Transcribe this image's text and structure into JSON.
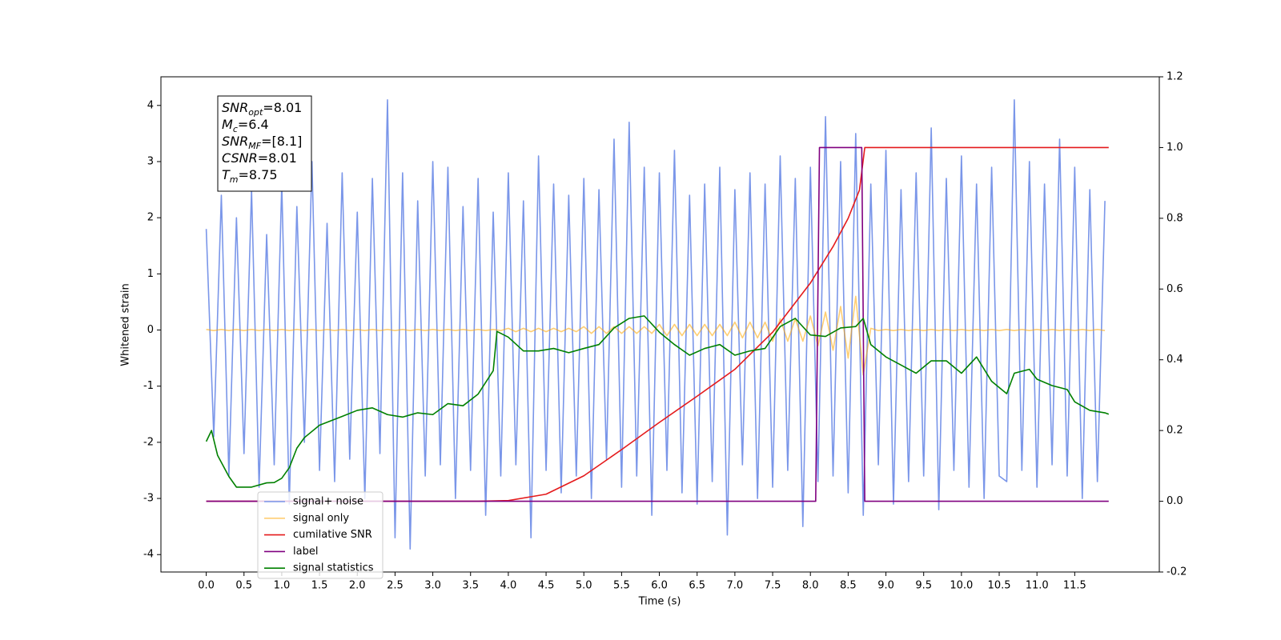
{
  "chart_data": {
    "type": "line",
    "xlabel": "Time (s)",
    "ylabel": "Whitened strain",
    "xlim": [
      -0.6,
      12.62
    ],
    "ylim": [
      -4.31,
      4.51
    ],
    "y2lim": [
      -0.2,
      1.2
    ],
    "xticks": [
      {
        "value": 0,
        "label": "0.0"
      },
      0.5,
      {
        "value": 1,
        "label": "1.0"
      },
      1.5,
      {
        "value": 2,
        "label": "2.0"
      },
      2.5,
      {
        "value": 3,
        "label": "3.0"
      },
      3.5,
      {
        "value": 4,
        "label": "4.0"
      },
      4.5,
      {
        "value": 5,
        "label": "5.0"
      },
      5.5,
      {
        "value": 6,
        "label": "6.0"
      },
      6.5,
      {
        "value": 7,
        "label": "7.0"
      },
      7.5,
      {
        "value": 8,
        "label": "8.0"
      },
      8.5,
      {
        "value": 9,
        "label": "9.0"
      },
      9.5,
      {
        "value": 10,
        "label": "10.0"
      },
      10.5,
      {
        "value": 11,
        "label": "11.0"
      },
      11.5
    ],
    "yticks": [
      -4,
      -3,
      -2,
      -1,
      0,
      1,
      2,
      3,
      4
    ],
    "y2ticks": [
      -0.2,
      {
        "value": 0,
        "label": "0.0"
      },
      0.2,
      0.4,
      0.6,
      0.8,
      {
        "value": 1,
        "label": "1.0"
      },
      1.2
    ],
    "legend": "lower left",
    "annotation": [
      {
        "main": "SNR",
        "sub": "opt",
        "text": "=8.01"
      },
      {
        "main": "M",
        "sub": "c",
        "text": "=6.4"
      },
      {
        "main": "SNR",
        "sub": "MF",
        "text": "=[8.1]"
      },
      {
        "main": "CSNR",
        "text": "=8.01"
      },
      {
        "main": "T",
        "sub": "m",
        "text": "=8.75"
      }
    ],
    "x": [
      0.0,
      0.1,
      0.2,
      0.3,
      0.4,
      0.5,
      0.6,
      0.7,
      0.8,
      0.9,
      1.0,
      1.1,
      1.2,
      1.3,
      1.4,
      1.5,
      1.6,
      1.7,
      1.8,
      1.9,
      2.0,
      2.1,
      2.2,
      2.3,
      2.4,
      2.5,
      2.6,
      2.7,
      2.8,
      2.9,
      3.0,
      3.1,
      3.2,
      3.3,
      3.4,
      3.5,
      3.6,
      3.7,
      3.8,
      3.9,
      4.0,
      4.1,
      4.2,
      4.3,
      4.4,
      4.5,
      4.6,
      4.7,
      4.8,
      4.9,
      5.0,
      5.1,
      5.2,
      5.3,
      5.4,
      5.5,
      5.6,
      5.7,
      5.8,
      5.9,
      6.0,
      6.1,
      6.2,
      6.3,
      6.4,
      6.5,
      6.6,
      6.7,
      6.8,
      6.9,
      7.0,
      7.1,
      7.2,
      7.3,
      7.4,
      7.5,
      7.6,
      7.7,
      7.8,
      7.9,
      8.0,
      8.1,
      8.2,
      8.3,
      8.4,
      8.5,
      8.6,
      8.7,
      8.8,
      8.9,
      9.0,
      9.1,
      9.2,
      9.3,
      9.4,
      9.5,
      9.6,
      9.7,
      9.8,
      9.9,
      10.0,
      10.1,
      10.2,
      10.3,
      10.4,
      10.5,
      10.6,
      10.7,
      10.8,
      10.9,
      11.0,
      11.1,
      11.2,
      11.3,
      11.4,
      11.5,
      11.6,
      11.7,
      11.8,
      11.9
    ],
    "series": [
      {
        "name": "signal+ noise",
        "color": "#7a96e9",
        "values": [
          1.8,
          -1.9,
          2.4,
          -2.6,
          2.0,
          -2.2,
          2.5,
          -2.8,
          1.7,
          -2.4,
          2.6,
          -3.1,
          2.2,
          -2.0,
          3.0,
          -2.5,
          1.9,
          -2.7,
          2.8,
          -2.3,
          2.1,
          -3.0,
          2.7,
          -2.2,
          4.1,
          -3.7,
          2.8,
          -3.9,
          2.3,
          -2.6,
          3.0,
          -2.4,
          2.9,
          -3.0,
          2.2,
          -2.5,
          2.7,
          -3.3,
          2.1,
          -2.6,
          2.8,
          -2.4,
          2.3,
          -3.7,
          3.1,
          -2.5,
          2.6,
          -2.9,
          2.4,
          -2.6,
          2.7,
          -3.0,
          2.5,
          -2.3,
          3.4,
          -2.8,
          3.7,
          -2.6,
          2.9,
          -3.3,
          2.8,
          -2.5,
          3.2,
          -2.9,
          2.4,
          -3.1,
          2.6,
          -2.7,
          2.9,
          -3.65,
          2.5,
          -2.4,
          2.8,
          -3.0,
          2.6,
          -2.8,
          3.1,
          -2.5,
          2.7,
          -3.5,
          2.9,
          -2.7,
          3.8,
          -2.6,
          3.0,
          -2.9,
          3.5,
          -3.3,
          2.6,
          -2.4,
          3.2,
          -3.1,
          2.5,
          -2.7,
          2.8,
          -2.6,
          3.6,
          -3.2,
          2.7,
          -2.5,
          3.1,
          -2.8,
          2.6,
          -3.0,
          2.9,
          -2.6,
          -2.7,
          4.1,
          -2.5,
          3.0,
          -2.8,
          2.6,
          -2.4,
          3.4,
          -2.6,
          2.9,
          -3.0,
          2.5,
          -2.7,
          2.3
        ]
      },
      {
        "name": "signal only",
        "color": "#ffa500",
        "values": [
          0.01,
          -0.01,
          0.01,
          -0.01,
          0.01,
          -0.01,
          0.01,
          -0.01,
          0.01,
          -0.01,
          0.01,
          -0.01,
          0.01,
          -0.01,
          0.01,
          -0.01,
          0.01,
          -0.01,
          0.01,
          -0.01,
          0.01,
          -0.01,
          0.01,
          -0.01,
          0.01,
          -0.01,
          0.01,
          -0.01,
          0.01,
          -0.01,
          0.01,
          -0.01,
          0.01,
          -0.01,
          0.01,
          -0.01,
          0.01,
          -0.01,
          0.01,
          -0.01,
          0.03,
          -0.03,
          0.03,
          -0.03,
          0.03,
          -0.03,
          0.03,
          -0.03,
          0.03,
          -0.03,
          0.06,
          -0.06,
          0.06,
          -0.06,
          0.06,
          -0.06,
          0.06,
          -0.06,
          0.06,
          -0.06,
          0.1,
          -0.1,
          0.1,
          -0.1,
          0.1,
          -0.1,
          0.1,
          -0.1,
          0.1,
          -0.1,
          0.14,
          -0.14,
          0.14,
          -0.14,
          0.14,
          -0.2,
          0.2,
          -0.2,
          0.2,
          -0.2,
          0.25,
          -0.28,
          0.32,
          -0.36,
          0.42,
          -0.5,
          0.6,
          -0.8,
          0.03,
          -0.01,
          0.01,
          -0.01,
          0.01,
          -0.01,
          0.01,
          -0.01,
          0.01,
          -0.01,
          0.01,
          -0.01,
          0.01,
          -0.01,
          0.01,
          -0.01,
          0.01,
          -0.01,
          0.01,
          -0.01,
          0.01,
          -0.01,
          0.01,
          -0.01,
          0.01,
          -0.01,
          0.01,
          -0.01,
          0.01,
          -0.01,
          0.01,
          -0.01
        ]
      },
      {
        "name": "cumilative SNR",
        "color": "#e41a1c",
        "axis": "y2",
        "x": [
          0,
          3.6,
          4.0,
          4.5,
          5.0,
          5.5,
          6.0,
          6.5,
          7.0,
          7.5,
          8.0,
          8.3,
          8.5,
          8.65,
          8.72,
          11.95
        ],
        "values": [
          0,
          0,
          0.002,
          0.02,
          0.072,
          0.146,
          0.223,
          0.297,
          0.373,
          0.478,
          0.617,
          0.72,
          0.8,
          0.88,
          1.0,
          1.0
        ]
      },
      {
        "name": "label",
        "color": "purple",
        "axis": "y2",
        "x": [
          0,
          8.07,
          8.12,
          8.68,
          8.72,
          11.95
        ],
        "values": [
          0,
          0,
          1,
          1,
          0,
          0
        ]
      },
      {
        "name": "signal statistics",
        "color": "green",
        "axis": "y2",
        "x": [
          0,
          0.07,
          0.15,
          0.3,
          0.4,
          0.5,
          0.6,
          0.8,
          0.9,
          1.0,
          1.1,
          1.2,
          1.3,
          1.5,
          1.8,
          2.0,
          2.2,
          2.4,
          2.6,
          2.8,
          3.0,
          3.2,
          3.4,
          3.6,
          3.8,
          3.85,
          4.0,
          4.2,
          4.4,
          4.6,
          4.8,
          5.0,
          5.2,
          5.4,
          5.6,
          5.8,
          6.0,
          6.2,
          6.4,
          6.6,
          6.8,
          7.0,
          7.2,
          7.4,
          7.6,
          7.8,
          8.0,
          8.2,
          8.4,
          8.6,
          8.7,
          8.8,
          9.0,
          9.2,
          9.4,
          9.6,
          9.8,
          10.0,
          10.2,
          10.4,
          10.6,
          10.7,
          10.9,
          11.0,
          11.2,
          11.4,
          11.5,
          11.7,
          11.9,
          11.95
        ],
        "values": [
          0.169,
          0.2,
          0.13,
          0.07,
          0.04,
          0.04,
          0.04,
          0.052,
          0.053,
          0.065,
          0.095,
          0.15,
          0.18,
          0.215,
          0.24,
          0.257,
          0.264,
          0.245,
          0.238,
          0.25,
          0.245,
          0.276,
          0.27,
          0.303,
          0.369,
          0.48,
          0.464,
          0.425,
          0.425,
          0.432,
          0.42,
          0.432,
          0.443,
          0.49,
          0.517,
          0.524,
          0.478,
          0.443,
          0.413,
          0.432,
          0.443,
          0.413,
          0.425,
          0.432,
          0.494,
          0.517,
          0.47,
          0.466,
          0.49,
          0.494,
          0.517,
          0.443,
          0.408,
          0.385,
          0.362,
          0.397,
          0.397,
          0.362,
          0.408,
          0.339,
          0.304,
          0.362,
          0.373,
          0.345,
          0.327,
          0.316,
          0.281,
          0.257,
          0.25,
          0.246
        ]
      }
    ]
  }
}
